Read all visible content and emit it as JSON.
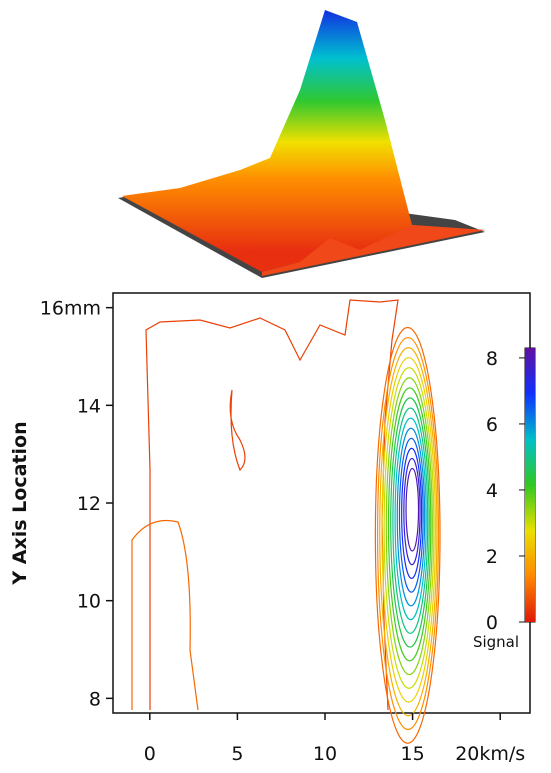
{
  "chart_data": {
    "type": "contour",
    "ylabel": "Y Axis Location",
    "xlim": [
      -2.1,
      21.7
    ],
    "xticks": [
      0,
      5,
      10,
      15,
      {
        "value": 20,
        "label": "20km/s"
      }
    ],
    "ylim": [
      7.7,
      16.3
    ],
    "yticks": [
      {
        "value": 8,
        "label": "8"
      },
      10,
      12,
      14,
      {
        "value": 16,
        "label": "16mm"
      }
    ],
    "levels": [
      0.5,
      1,
      1.5,
      2,
      2.5,
      3,
      3.5,
      4,
      4.5,
      5,
      5.5,
      6,
      6.5,
      7,
      7.5,
      8
    ],
    "colorbar": {
      "label": "Signal",
      "lim": [
        0,
        8.3
      ],
      "ticks": [
        0,
        2,
        4,
        6,
        8
      ],
      "colors": [
        "#e01808",
        "#ff8800",
        "#e8e000",
        "#30c820",
        "#00c0c8",
        "#1030ff",
        "#6010a0"
      ]
    }
  }
}
